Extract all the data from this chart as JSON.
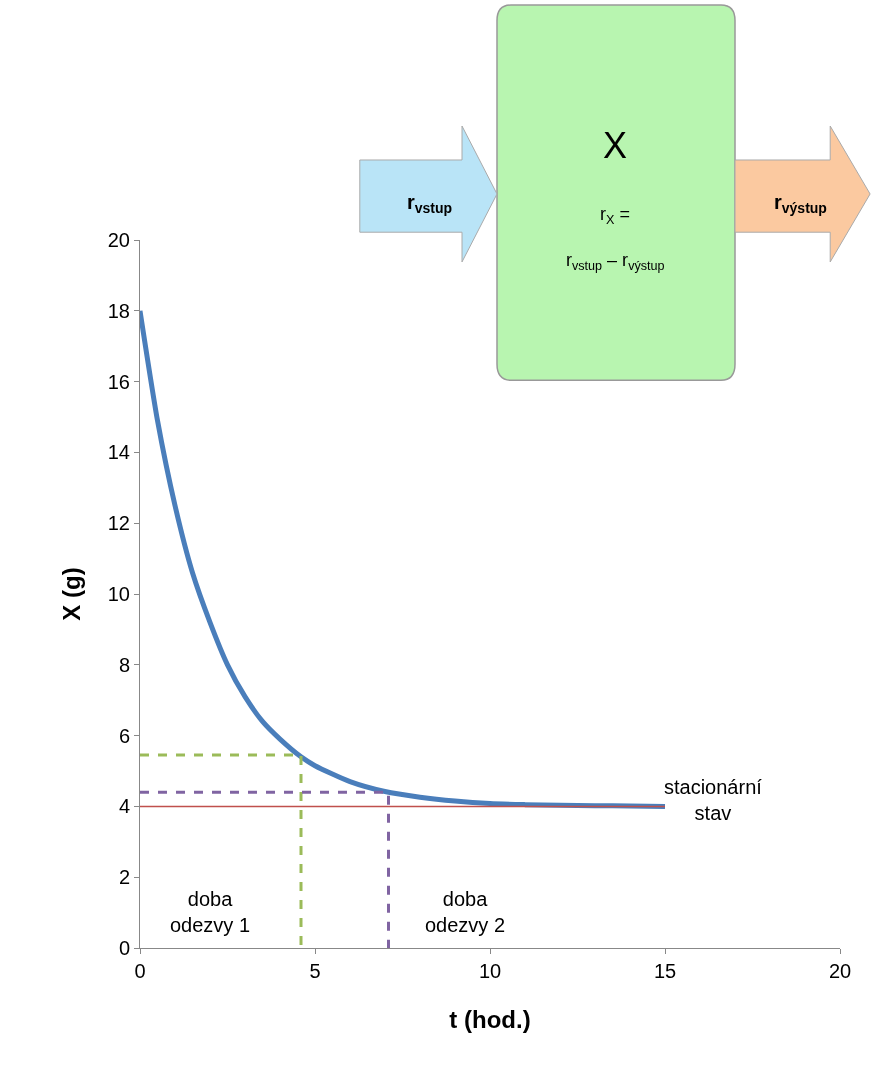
{
  "chart_data": {
    "type": "line",
    "xlabel": "t (hod.)",
    "ylabel": "X (g)",
    "xlim": [
      0,
      20
    ],
    "xticks": [
      0,
      5,
      10,
      15,
      20
    ],
    "ylim": [
      0,
      20
    ],
    "yticks": [
      0,
      2,
      4,
      6,
      8,
      10,
      12,
      14,
      16,
      18,
      20
    ],
    "marker": "none",
    "series": [
      {
        "color": "#4a7ebb",
        "x": [
          0,
          0.5,
          1,
          1.5,
          2,
          2.5,
          3,
          3.5,
          4,
          4.6,
          5,
          6,
          7,
          8,
          9,
          10,
          11,
          12,
          13,
          14,
          15
        ],
        "values": [
          18,
          14.9,
          12.5,
          10.6,
          9.2,
          8.0,
          7.1,
          6.4,
          5.9,
          5.4,
          5.15,
          4.7,
          4.42,
          4.26,
          4.15,
          4.08,
          4.05,
          4.03,
          4.02,
          4.01,
          4.0
        ],
        "line_style": "solid"
      },
      {
        "color": "#c0504d",
        "x": [
          0,
          15
        ],
        "values": [
          4,
          4
        ],
        "line_style": "solid"
      },
      {
        "color": "#9bbb59",
        "x": [
          0,
          4.6,
          4.6
        ],
        "values": [
          5.45,
          5.45,
          0
        ],
        "line_style": "dashed"
      },
      {
        "color": "#8064a2",
        "x": [
          0,
          7.1,
          7.1
        ],
        "values": [
          4.4,
          4.4,
          0
        ],
        "line_style": "dashed"
      }
    ],
    "annotations": [
      "doba\nodezvy 1",
      "doba\nodezvy 2",
      "stacionární\nstav",
      "X",
      "r$_{X}$ =",
      "r$_{vstup}$ – r$_{výstup}$",
      "r$_{vstup}$",
      "r$_{výstup}$"
    ]
  }
}
